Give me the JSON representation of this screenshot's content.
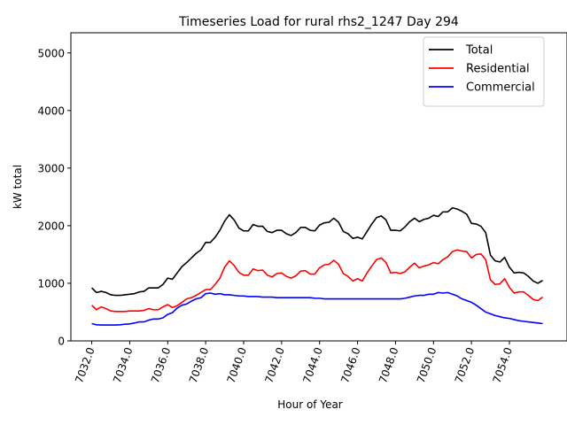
{
  "chart_data": {
    "type": "line",
    "title": "Timeseries Load for rural rhs2_1247  Day 294",
    "xlabel": "Hour of Year",
    "ylabel": "kW total",
    "xlim": [
      7030.9,
      7056.1
    ],
    "ylim": [
      0,
      5350
    ],
    "xticks": [
      7032,
      7034,
      7036,
      7038,
      7040,
      7042,
      7044,
      7046,
      7048,
      7050,
      7052,
      7054
    ],
    "xtick_labels": [
      "7032.0",
      "7034.0",
      "7036.0",
      "7038.0",
      "7040.0",
      "7042.0",
      "7044.0",
      "7046.0",
      "7048.0",
      "7050.0",
      "7052.0",
      "7054.0"
    ],
    "yticks": [
      0,
      1000,
      2000,
      3000,
      4000,
      5000
    ],
    "ytick_labels": [
      "0",
      "1000",
      "2000",
      "3000",
      "4000",
      "5000"
    ],
    "legend_position": "top-right",
    "x_start": 7032,
    "x_step": 0.25,
    "series": [
      {
        "name": "Total",
        "color": "#000000",
        "values": [
          920,
          840,
          860,
          840,
          800,
          790,
          790,
          800,
          810,
          820,
          850,
          860,
          920,
          920,
          920,
          980,
          1090,
          1070,
          1180,
          1290,
          1360,
          1440,
          1520,
          1580,
          1710,
          1710,
          1800,
          1920,
          2080,
          2190,
          2100,
          1960,
          1910,
          1910,
          2020,
          1990,
          1990,
          1900,
          1880,
          1920,
          1920,
          1860,
          1830,
          1880,
          1970,
          1970,
          1920,
          1910,
          2010,
          2050,
          2060,
          2130,
          2060,
          1900,
          1860,
          1780,
          1800,
          1770,
          1900,
          2030,
          2140,
          2170,
          2100,
          1920,
          1920,
          1910,
          1980,
          2070,
          2130,
          2070,
          2110,
          2130,
          2180,
          2160,
          2240,
          2240,
          2310,
          2290,
          2250,
          2200,
          2040,
          2030,
          1990,
          1880,
          1490,
          1390,
          1370,
          1450,
          1280,
          1180,
          1190,
          1180,
          1120,
          1040,
          1000,
          1050
        ]
      },
      {
        "name": "Residential",
        "color": "#ff0000",
        "values": [
          620,
          540,
          590,
          560,
          520,
          510,
          510,
          510,
          520,
          520,
          520,
          530,
          560,
          540,
          540,
          590,
          630,
          580,
          610,
          670,
          730,
          750,
          790,
          840,
          890,
          890,
          980,
          1090,
          1280,
          1390,
          1310,
          1190,
          1140,
          1140,
          1250,
          1220,
          1230,
          1140,
          1110,
          1170,
          1180,
          1120,
          1090,
          1130,
          1210,
          1220,
          1160,
          1160,
          1270,
          1320,
          1330,
          1400,
          1330,
          1170,
          1120,
          1040,
          1080,
          1040,
          1180,
          1300,
          1410,
          1440,
          1360,
          1180,
          1190,
          1170,
          1200,
          1280,
          1350,
          1270,
          1300,
          1320,
          1360,
          1340,
          1410,
          1460,
          1550,
          1580,
          1560,
          1550,
          1440,
          1500,
          1510,
          1410,
          1060,
          980,
          990,
          1080,
          930,
          830,
          850,
          850,
          790,
          720,
          700,
          760
        ]
      },
      {
        "name": "Commercial",
        "color": "#0000ff",
        "values": [
          300,
          280,
          275,
          275,
          275,
          275,
          280,
          290,
          295,
          310,
          330,
          330,
          360,
          380,
          380,
          400,
          460,
          490,
          570,
          620,
          640,
          690,
          730,
          750,
          820,
          830,
          810,
          820,
          800,
          800,
          790,
          780,
          780,
          770,
          770,
          770,
          760,
          760,
          760,
          750,
          750,
          750,
          750,
          750,
          750,
          750,
          750,
          740,
          740,
          730,
          730,
          730,
          730,
          730,
          730,
          730,
          730,
          730,
          730,
          730,
          730,
          730,
          730,
          730,
          730,
          730,
          740,
          760,
          780,
          790,
          790,
          810,
          810,
          840,
          830,
          840,
          810,
          780,
          730,
          700,
          670,
          620,
          560,
          500,
          470,
          440,
          420,
          400,
          390,
          370,
          350,
          340,
          330,
          320,
          310,
          300
        ]
      }
    ]
  }
}
